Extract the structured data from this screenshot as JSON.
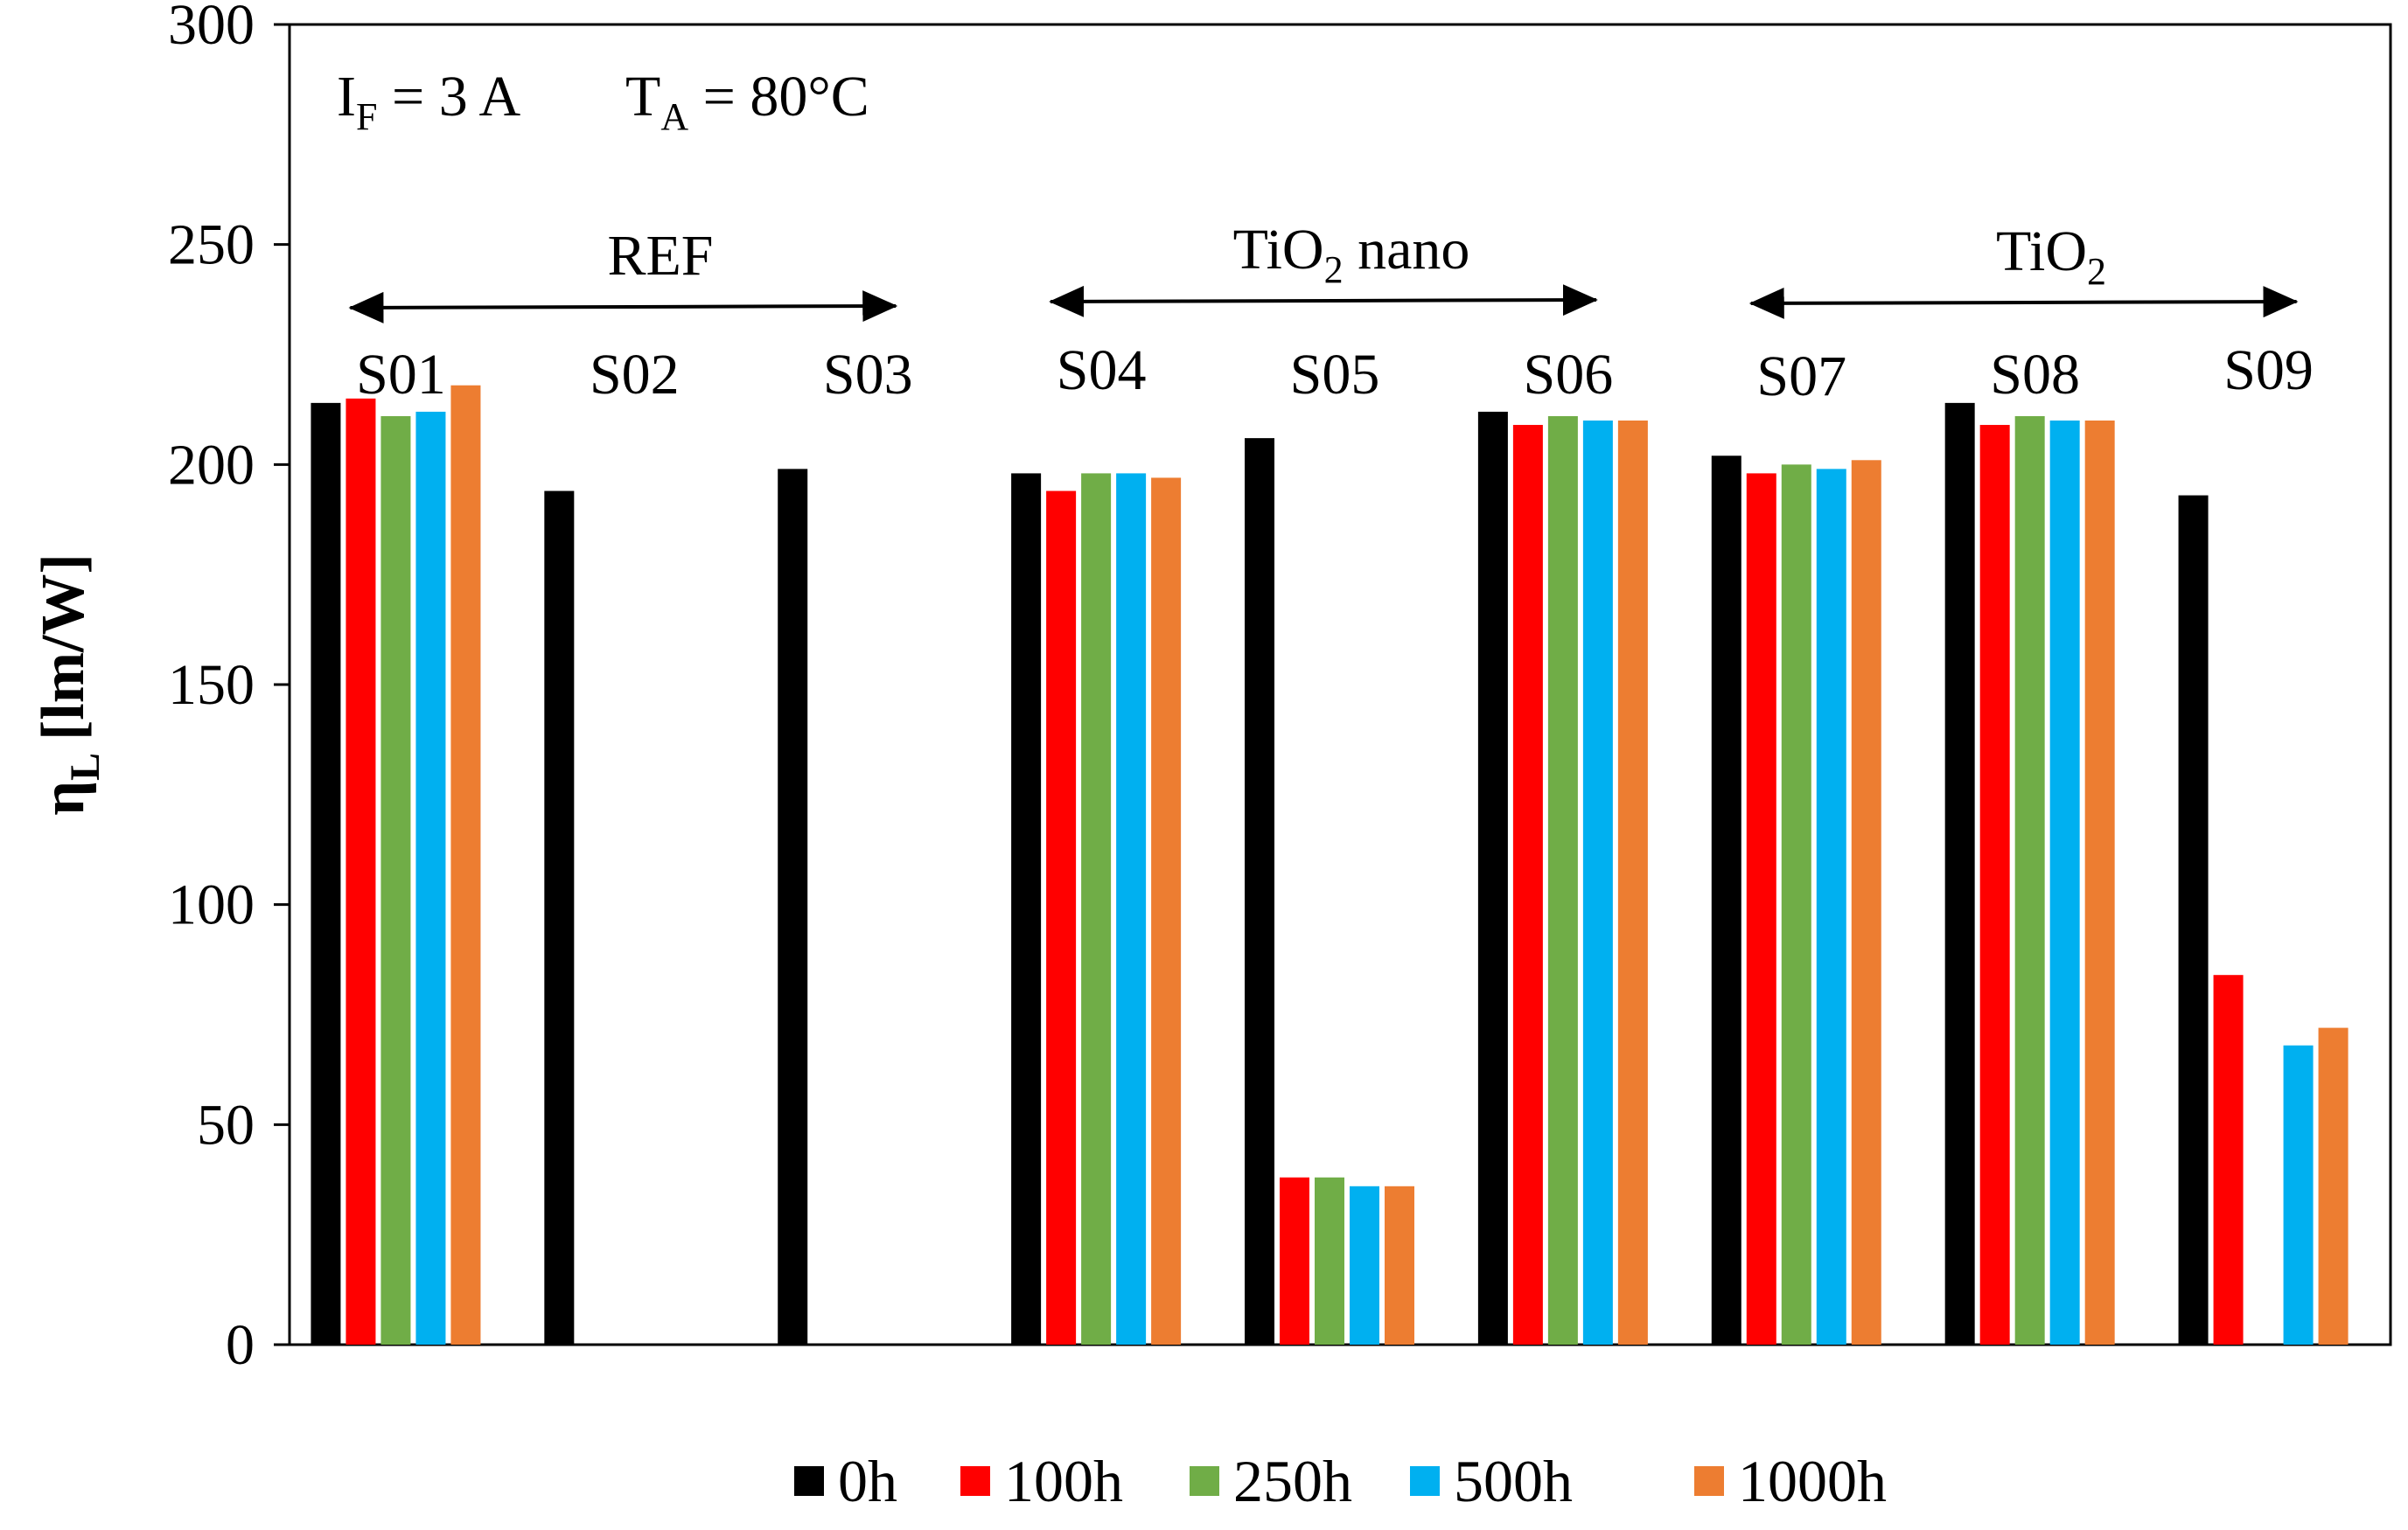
{
  "chart_data": {
    "type": "bar",
    "title": "",
    "xlabel": "",
    "ylabel": {
      "symbol": "η",
      "sub": "L",
      "unit": "[lm/W]"
    },
    "ylim": [
      0,
      300
    ],
    "yticks": [
      0,
      50,
      100,
      150,
      200,
      250,
      300
    ],
    "grid": false,
    "legend_position": "bottom",
    "categories": [
      "S01",
      "S02",
      "S03",
      "S04",
      "S05",
      "S06",
      "S07",
      "S08",
      "S09"
    ],
    "series": [
      {
        "name": "0h",
        "color": "#000000",
        "values": [
          214,
          194,
          199,
          198,
          206,
          212,
          202,
          214,
          193
        ]
      },
      {
        "name": "100h",
        "color": "#ff0000",
        "values": [
          215,
          null,
          null,
          194,
          38,
          209,
          198,
          209,
          84
        ]
      },
      {
        "name": "250h",
        "color": "#70ad47",
        "values": [
          211,
          null,
          null,
          198,
          38,
          211,
          200,
          211,
          null
        ]
      },
      {
        "name": "500h",
        "color": "#00b0f0",
        "values": [
          212,
          null,
          null,
          198,
          36,
          210,
          199,
          210,
          68
        ]
      },
      {
        "name": "1000h",
        "color": "#ed7d31",
        "values": [
          218,
          null,
          null,
          197,
          36,
          210,
          201,
          210,
          72
        ]
      }
    ],
    "groups": [
      {
        "label": "REF",
        "sub": "",
        "suffix": "",
        "from": "S01",
        "to": "S03"
      },
      {
        "label": "TiO",
        "sub": "2",
        "suffix": " nano",
        "from": "S04",
        "to": "S06"
      },
      {
        "label": "TiO",
        "sub": "2",
        "suffix": "",
        "from": "S07",
        "to": "S09"
      }
    ],
    "annotation": {
      "current_symbol": "I",
      "current_sub": "F",
      "current_value": " = 3 A",
      "temp_symbol": "T",
      "temp_sub": "A",
      "temp_value": " = 80°C"
    }
  }
}
